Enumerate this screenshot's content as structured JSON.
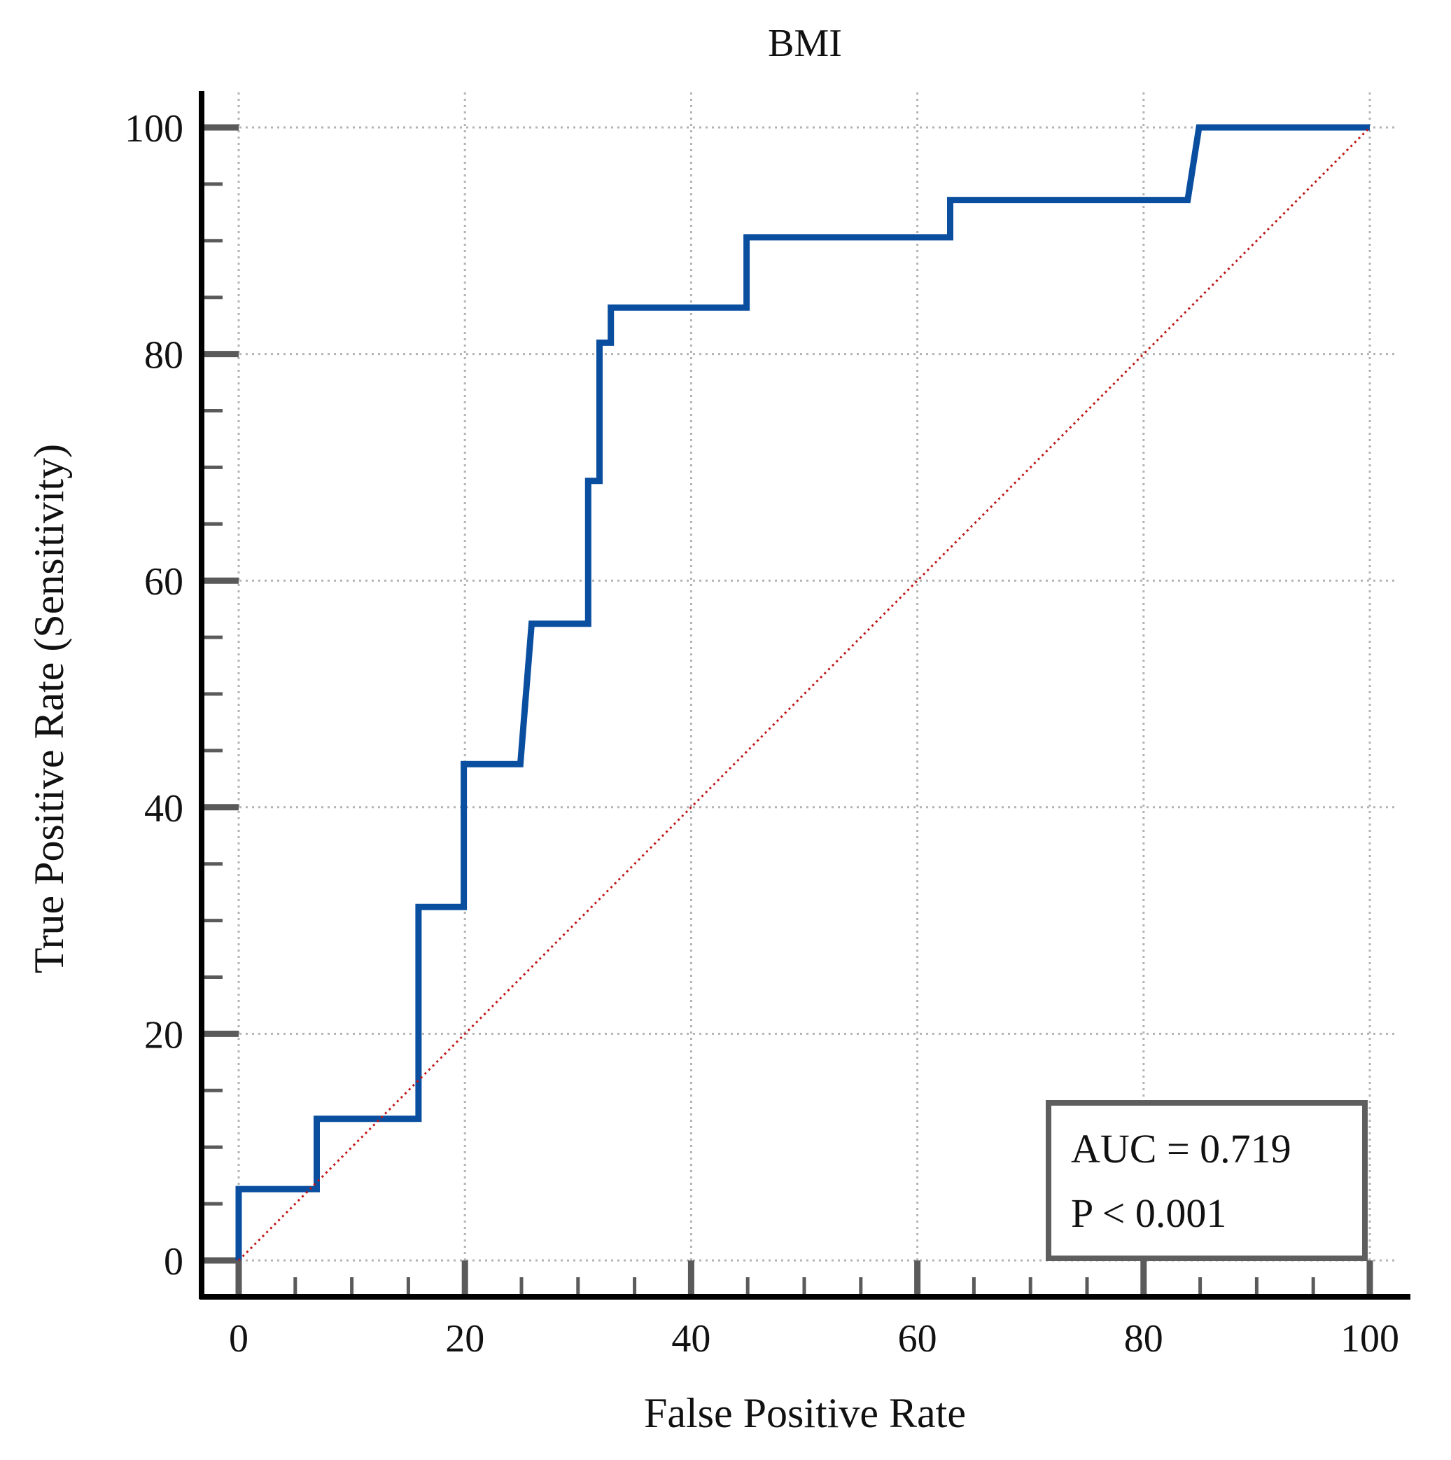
{
  "chart_data": {
    "type": "line",
    "title": "BMI",
    "xlabel": "False Positive Rate",
    "ylabel": "True Positive Rate (Sensitivity)",
    "xlim": [
      0,
      100
    ],
    "ylim": [
      0,
      100
    ],
    "x_ticks": [
      0,
      20,
      40,
      60,
      80,
      100
    ],
    "y_ticks": [
      0,
      20,
      40,
      60,
      80,
      100
    ],
    "x_tick_labels": [
      "0",
      "20",
      "40",
      "60",
      "80",
      "100"
    ],
    "y_tick_labels": [
      "0",
      "20",
      "40",
      "60",
      "80",
      "100"
    ],
    "x_minor_step": 5,
    "y_minor_step": 5,
    "grid": true,
    "series": [
      {
        "color": "#0a4ea0",
        "x": [
          0,
          0,
          6.9,
          6.9,
          15.9,
          15.9,
          19.9,
          19.9,
          24.9,
          25.9,
          30.9,
          30.9,
          31.9,
          31.9,
          32.9,
          32.9,
          44.9,
          44.9,
          62.9,
          62.9,
          83.9,
          84.9,
          100
        ],
        "y": [
          0,
          6.3,
          6.3,
          12.5,
          12.5,
          31.2,
          31.2,
          43.8,
          43.8,
          56.2,
          56.2,
          68.8,
          68.8,
          81.0,
          81.0,
          84.1,
          84.1,
          90.3,
          90.3,
          93.6,
          93.6,
          100,
          100
        ]
      },
      {
        "color": "#c01818",
        "x": [
          0,
          100
        ],
        "y": [
          0,
          100
        ],
        "style": "dotted"
      }
    ],
    "annotations": [
      "AUC = 0.719",
      "P < 0.001"
    ],
    "annotation_placement": "bottom-right"
  }
}
